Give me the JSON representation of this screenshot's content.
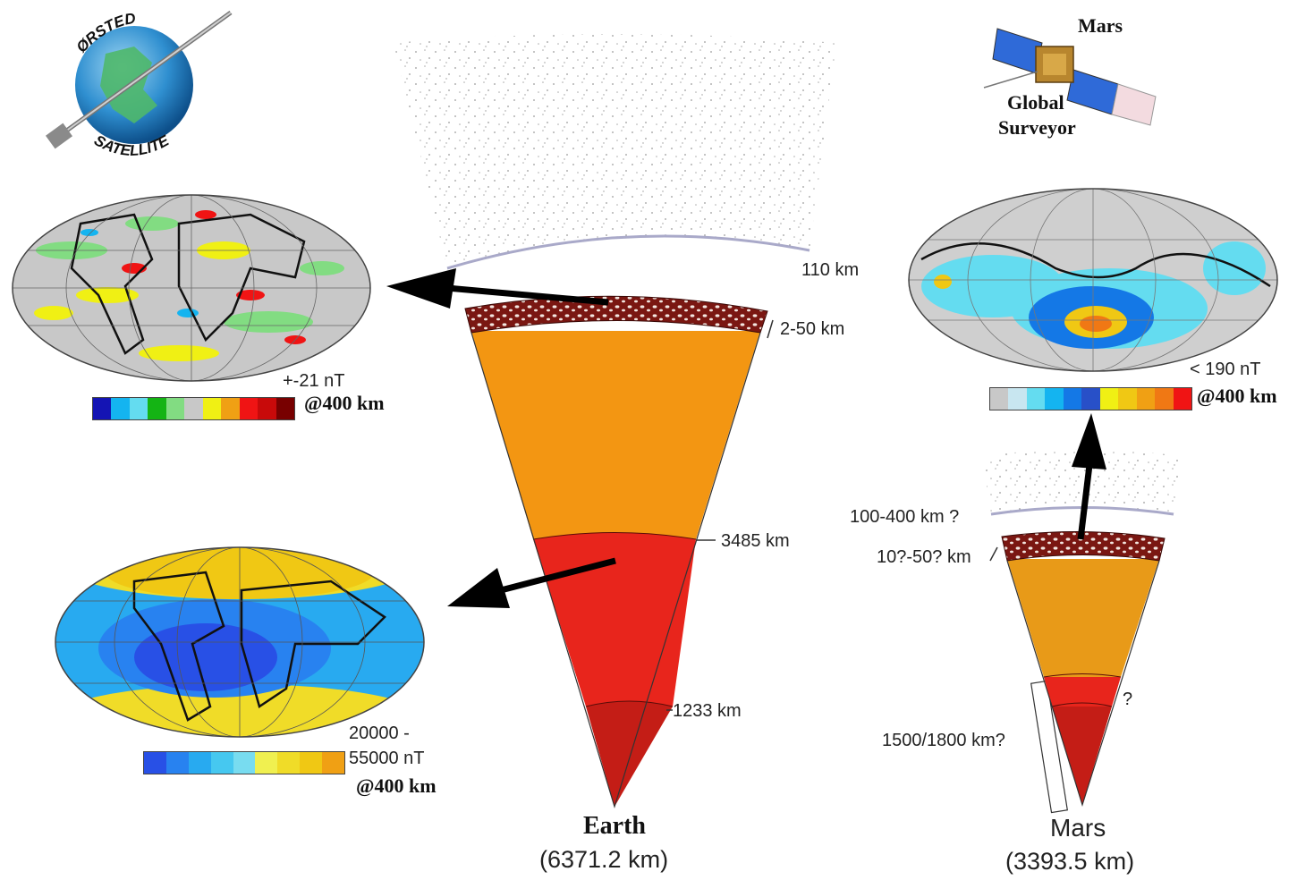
{
  "satellite_left": {
    "arc_top": "ØRSTED",
    "arc_bottom": "SATELLITE"
  },
  "satellite_right": {
    "name_line1": "Mars",
    "name_line2": "Global",
    "name_line3": "Surveyor"
  },
  "earth": {
    "name": "Earth",
    "radius": "(6371.2 km)",
    "labels": {
      "atmosphere": "110 km",
      "crust": "2-50 km",
      "cmb": "3485 km",
      "icb": "1233 km"
    },
    "colors": {
      "crust": "#7a1712",
      "mantle": "#f39612",
      "outer_core": "#e8251c",
      "inner_core": "#c41d16"
    }
  },
  "mars": {
    "name": "Mars",
    "radius": "(3393.5 km)",
    "labels": {
      "atmosphere": "100-400 km ?",
      "crust": "10?-50? km",
      "core": "1500/1800 km?",
      "question": "?"
    },
    "colors": {
      "crust": "#7a1712",
      "mantle": "#e89a18",
      "outer_core": "#e8251c",
      "inner_core": "#c41d16"
    }
  },
  "maps": {
    "crustal_earth": {
      "range": "+-21 nT",
      "altitude": "@400 km",
      "scale": [
        "#1414b4",
        "#14b4f0",
        "#64dcf0",
        "#14b414",
        "#82dc82",
        "#c8c8c8",
        "#f0f014",
        "#f0a014",
        "#f01414",
        "#c80a0a",
        "#780000"
      ]
    },
    "core_earth": {
      "range_line1": "20000 -",
      "range_line2": "55000 nT",
      "altitude": "@400 km",
      "scale": [
        "#2850e6",
        "#2882f0",
        "#28aaf0",
        "#46c8f0",
        "#78dcf0",
        "#f0f050",
        "#f0dc28",
        "#f0c814",
        "#f0a014"
      ]
    },
    "mars_crustal": {
      "range": "< 190 nT",
      "altitude": "@400 km",
      "scale": [
        "#c8c8c8",
        "#c8e6f0",
        "#64dcf0",
        "#14b4f0",
        "#1478e6",
        "#2850c8",
        "#f0f014",
        "#f0c814",
        "#f0a014",
        "#f07814",
        "#f01414"
      ]
    }
  }
}
